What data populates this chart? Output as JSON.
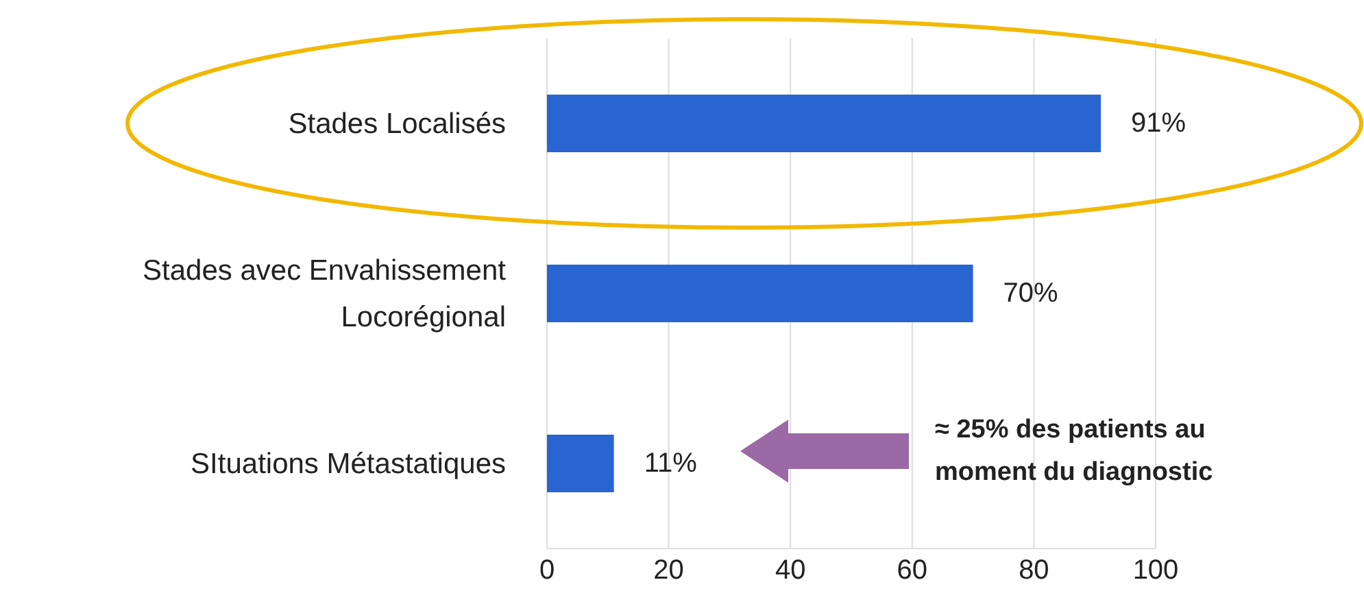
{
  "chart_data": {
    "type": "bar",
    "orientation": "horizontal",
    "categories": [
      "Stades Localisés",
      "Stades avec Envahissement Locorégional",
      "SItuations Métastatiques"
    ],
    "values": [
      91,
      70,
      11
    ],
    "color": "#2865d1",
    "value_labels": [
      "91%",
      "70%",
      "11%"
    ],
    "xlim": [
      0,
      100
    ],
    "xticks": [
      0,
      20,
      40,
      60,
      80,
      100
    ],
    "grid": "x",
    "annotations": [
      "≈ 25% des patients au moment du diagnostic"
    ]
  }
}
